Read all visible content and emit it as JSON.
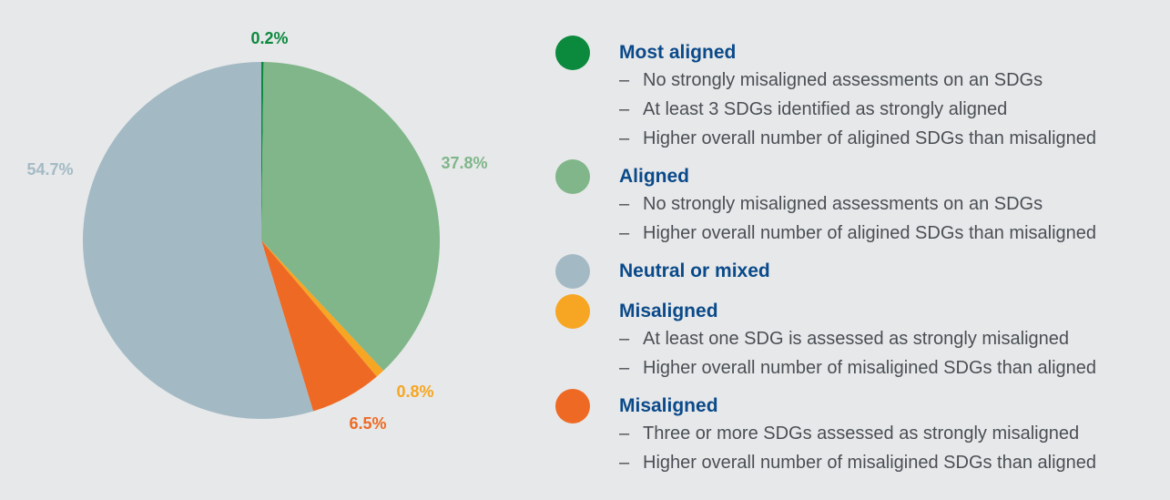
{
  "chart_data": {
    "type": "pie",
    "slices": [
      {
        "label": "0.2%",
        "value": 0.2,
        "color": "#0b8a3e",
        "category": "Most aligned"
      },
      {
        "label": "37.8%",
        "value": 37.8,
        "color": "#80b68a",
        "category": "Aligned"
      },
      {
        "label": "0.8%",
        "value": 0.8,
        "color": "#f6a623",
        "category": "Misaligned"
      },
      {
        "label": "6.5%",
        "value": 6.5,
        "color": "#ee6a24",
        "category": "Misaligned"
      },
      {
        "label": "54.7%",
        "value": 54.7,
        "color": "#a3bac5",
        "category": "Neutral or mixed"
      }
    ],
    "legend_placement": "right"
  },
  "legend": [
    {
      "title": "Most aligned",
      "color": "#0b8a3e",
      "items": [
        "No strongly misaligned assessments on an SDGs",
        "At least 3 SDGs identified as strongly aligned",
        "Higher overall number of aligined SDGs than misaligned"
      ]
    },
    {
      "title": "Aligned",
      "color": "#80b68a",
      "items": [
        "No strongly misaligned assessments on an SDGs",
        "Higher overall number of aligined SDGs than misaligned"
      ]
    },
    {
      "title": "Neutral or mixed",
      "color": "#a3bac5",
      "items": []
    },
    {
      "title": "Misaligned",
      "color": "#f6a623",
      "items": [
        "At least one SDG is assessed as strongly misaligned",
        "Higher overall number of misaligined SDGs than aligned"
      ]
    },
    {
      "title": "Misaligned",
      "color": "#ee6a24",
      "items": [
        "Three or more SDGs assessed as strongly misaligned",
        "Higher overall number of misaligined SDGs than aligned"
      ]
    }
  ],
  "dash_char": "–"
}
